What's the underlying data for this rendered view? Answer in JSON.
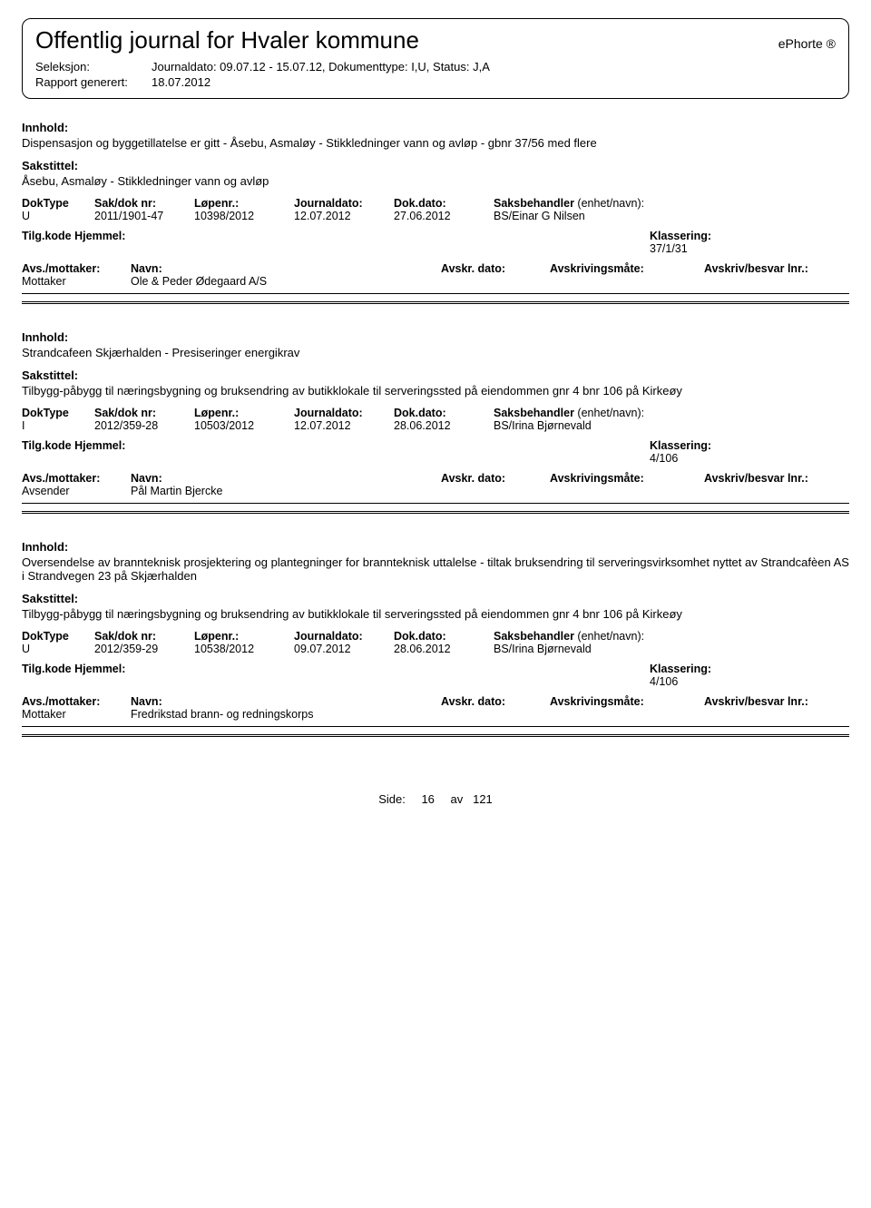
{
  "header": {
    "title": "Offentlig journal for Hvaler kommune",
    "brand": "ePhorte ®",
    "seleksjon_label": "Seleksjon:",
    "seleksjon_value": "Journaldato: 09.07.12 - 15.07.12, Dokumenttype: I,U, Status: J,A",
    "rapport_label": "Rapport generert:",
    "rapport_value": "18.07.2012"
  },
  "labels": {
    "innhold": "Innhold:",
    "sakstittel": "Sakstittel:",
    "doktype": "DokType",
    "sakdok": "Sak/dok nr:",
    "lopenr": "Løpenr.:",
    "journaldato": "Journaldato:",
    "dokdato": "Dok.dato:",
    "saksbehandler": "Saksbehandler",
    "enhet_navn": "(enhet/navn):",
    "tilgkode": "Tilg.kode",
    "hjemmel": "Hjemmel:",
    "klassering": "Klassering:",
    "avsmottaker": "Avs./mottaker:",
    "navn": "Navn:",
    "avskrdato": "Avskr. dato:",
    "avskrivingsmate": "Avskrivingsmåte:",
    "avskrivbesvar": "Avskriv/besvar lnr.:"
  },
  "entries": [
    {
      "innhold": "Dispensasjon og byggetillatelse er gitt - Åsebu, Asmaløy - Stikkledninger vann og avløp - gbnr 37/56 med flere",
      "sakstittel": "Åsebu, Asmaløy - Stikkledninger vann og avløp",
      "doktype": "U",
      "sakdok": "2011/1901-47",
      "lopenr": "10398/2012",
      "journaldato": "12.07.2012",
      "dokdato": "27.06.2012",
      "saksbehandler": "BS/Einar G Nilsen",
      "klassering": "37/1/31",
      "party_role": "Mottaker",
      "party_name": "Ole & Peder Ødegaard A/S"
    },
    {
      "innhold": "Strandcafeen  Skjærhalden - Presiseringer energikrav",
      "sakstittel": "Tilbygg-påbygg til næringsbygning og bruksendring av butikklokale til serveringssted på eiendommen gnr 4 bnr 106 på Kirkeøy",
      "doktype": "I",
      "sakdok": "2012/359-28",
      "lopenr": "10503/2012",
      "journaldato": "12.07.2012",
      "dokdato": "28.06.2012",
      "saksbehandler": "BS/Irina Bjørnevald",
      "klassering": "4/106",
      "party_role": "Avsender",
      "party_name": "Pål Martin Bjercke"
    },
    {
      "innhold": "Oversendelse av brannteknisk prosjektering og plantegninger for brannteknisk uttalelse - tiltak bruksendring til serveringsvirksomhet nyttet av Strandcafèen AS i Strandvegen 23 på Skjærhalden",
      "sakstittel": "Tilbygg-påbygg til næringsbygning og bruksendring av butikklokale til serveringssted på eiendommen gnr 4 bnr 106 på Kirkeøy",
      "doktype": "U",
      "sakdok": "2012/359-29",
      "lopenr": "10538/2012",
      "journaldato": "09.07.2012",
      "dokdato": "28.06.2012",
      "saksbehandler": "BS/Irina Bjørnevald",
      "klassering": "4/106",
      "party_role": "Mottaker",
      "party_name": "Fredrikstad brann- og redningskorps"
    }
  ],
  "footer": {
    "side_label": "Side:",
    "page": "16",
    "av_label": "av",
    "total": "121"
  }
}
